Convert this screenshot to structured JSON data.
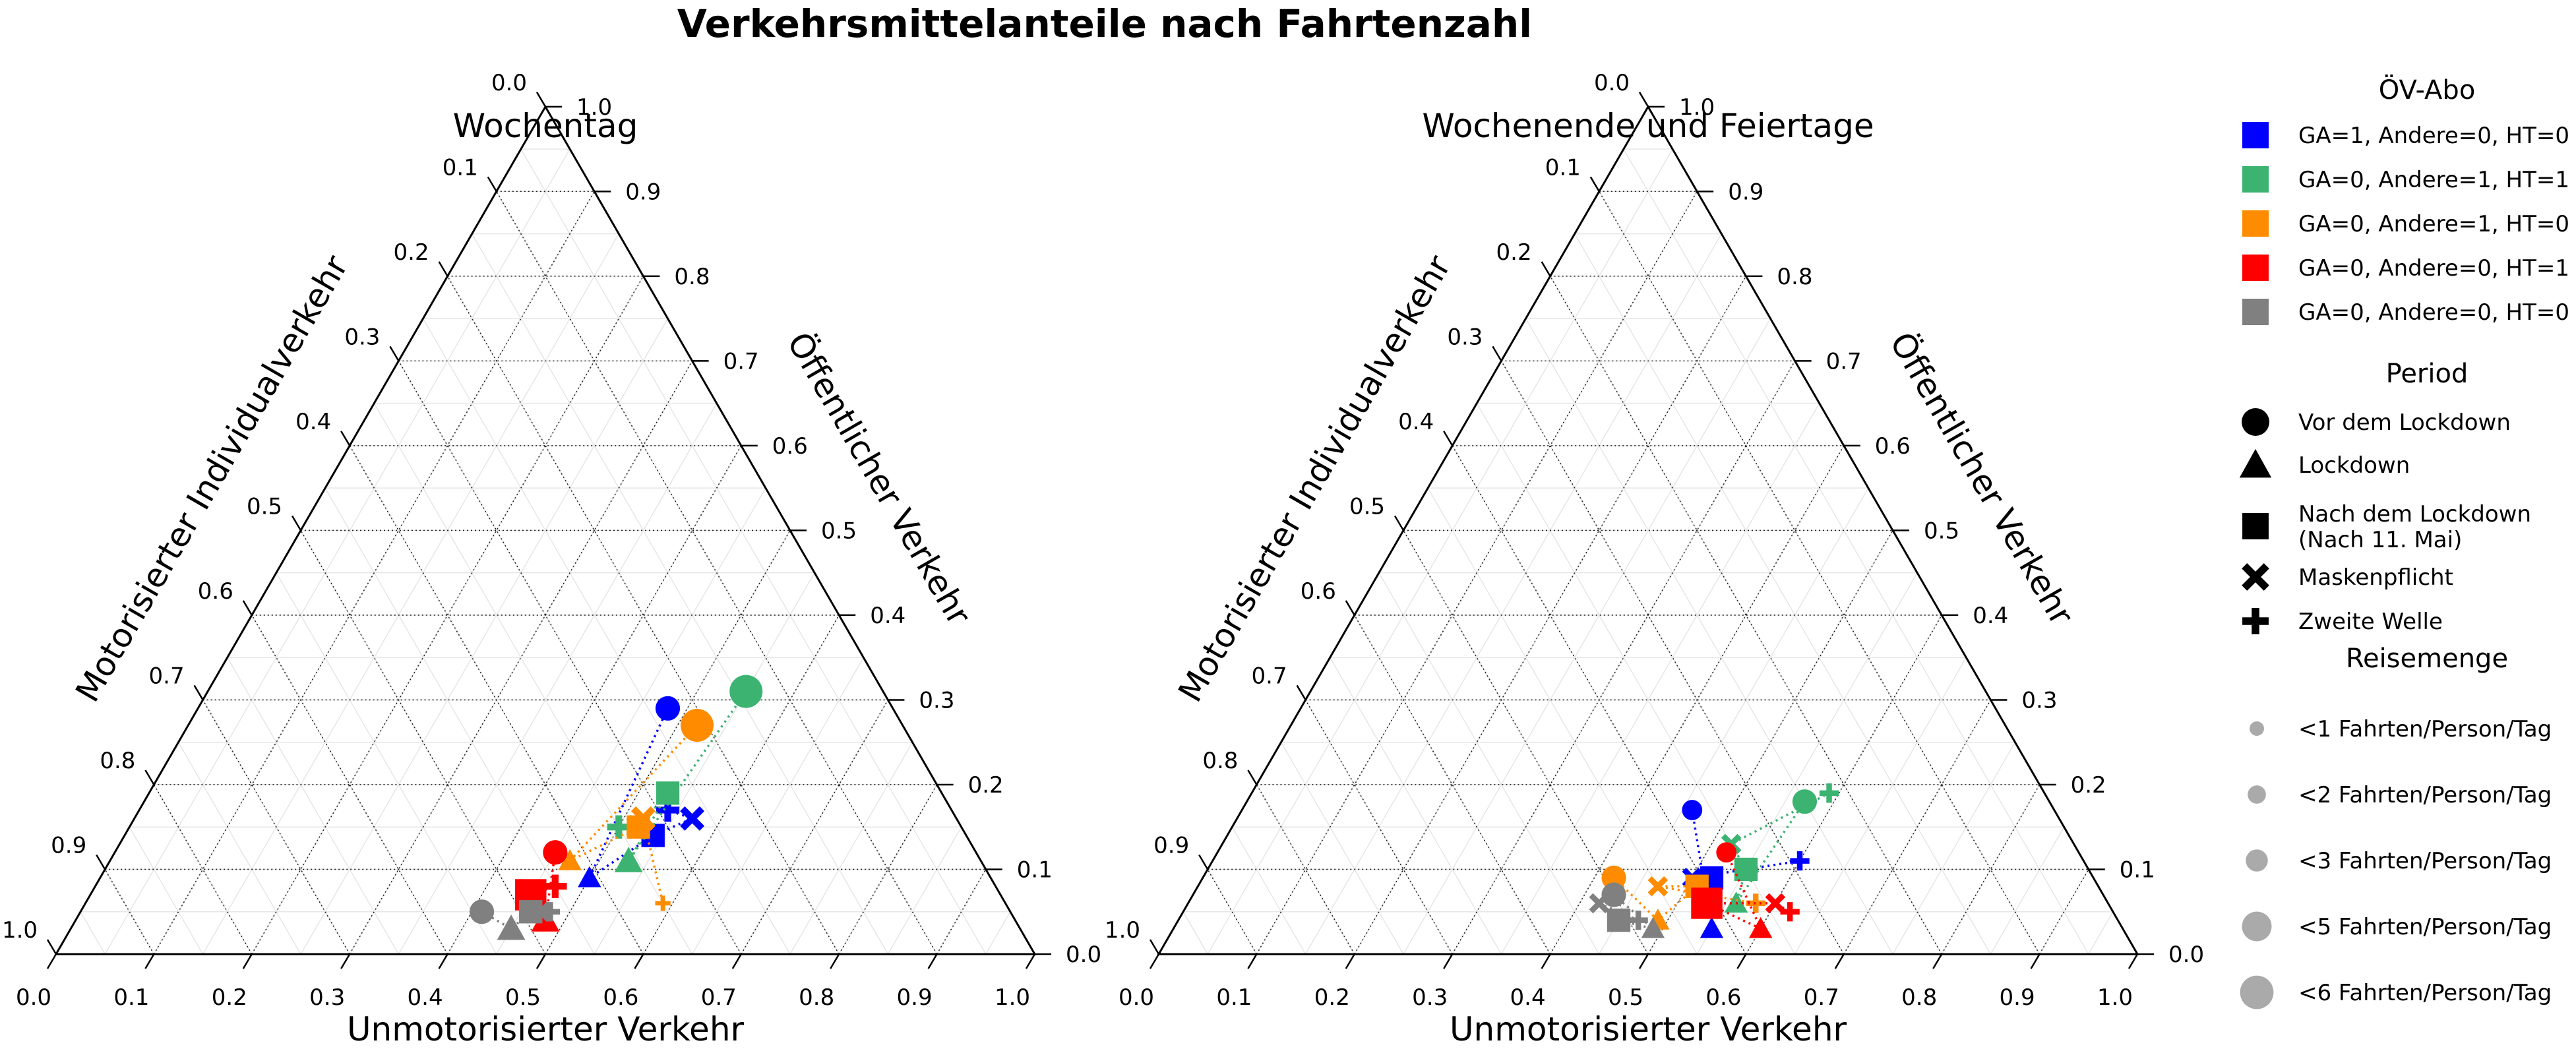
{
  "title": "Verkehrsmittelanteile nach Fahrtenzahl",
  "legend": {
    "abo_title": "ÖV-Abo",
    "abo": [
      {
        "label": "GA=1, Andere=0, HT=0",
        "color": "#0000ff"
      },
      {
        "label": "GA=0, Andere=1, HT=1",
        "color": "#3cb371"
      },
      {
        "label": "GA=0, Andere=1, HT=0",
        "color": "#ff8c00"
      },
      {
        "label": "GA=0, Andere=0, HT=1",
        "color": "#ff0000"
      },
      {
        "label": "GA=0, Andere=0, HT=0",
        "color": "#808080"
      }
    ],
    "period_title": "Period",
    "periods": [
      {
        "label": "Vor dem Lockdown",
        "marker": "circle"
      },
      {
        "label": "Lockdown",
        "marker": "triangle"
      },
      {
        "label": "Nach dem Lockdown\n(Nach 11. Mai)",
        "marker": "square"
      },
      {
        "label": "Maskenpflicht",
        "marker": "x"
      },
      {
        "label": "Zweite Welle",
        "marker": "plus"
      }
    ],
    "size_title": "Reisemenge",
    "sizes": [
      {
        "label": "<1 Fahrten/Person/Tag",
        "trips": 1
      },
      {
        "label": "<2 Fahrten/Person/Tag",
        "trips": 2
      },
      {
        "label": "<3 Fahrten/Person/Tag",
        "trips": 3
      },
      {
        "label": "<5 Fahrten/Person/Tag",
        "trips": 5
      },
      {
        "label": "<6 Fahrten/Person/Tag",
        "trips": 6
      }
    ]
  },
  "chart_data": [
    {
      "type": "scatter",
      "subtype": "ternary",
      "title": "Wochentag",
      "axes": {
        "bottom": "Unmotorisierter Verkehr",
        "right": "Öffentlicher Verkehr",
        "left": "Motorisierter Individualverkehr"
      },
      "ticks": [
        "0.0",
        "0.1",
        "0.2",
        "0.3",
        "0.4",
        "0.5",
        "0.6",
        "0.7",
        "0.8",
        "0.9",
        "1.0"
      ],
      "series": [
        {
          "abo": 0,
          "points": [
            {
              "period": "circle",
              "unmot": 0.48,
              "oev": 0.29,
              "trips": 3
            },
            {
              "period": "triangle",
              "unmot": 0.5,
              "oev": 0.09,
              "trips": 2
            },
            {
              "period": "square",
              "unmot": 0.54,
              "oev": 0.14,
              "trips": 3
            },
            {
              "period": "x",
              "unmot": 0.57,
              "oev": 0.16,
              "trips": 3
            },
            {
              "period": "plus",
              "unmot": 0.54,
              "oev": 0.17,
              "trips": 3
            }
          ]
        },
        {
          "abo": 1,
          "points": [
            {
              "period": "circle",
              "unmot": 0.55,
              "oev": 0.31,
              "trips": 5
            },
            {
              "period": "triangle",
              "unmot": 0.53,
              "oev": 0.11,
              "trips": 3
            },
            {
              "period": "square",
              "unmot": 0.53,
              "oev": 0.19,
              "trips": 3
            },
            {
              "period": "x",
              "unmot": 0.52,
              "oev": 0.15,
              "trips": 3
            },
            {
              "period": "plus",
              "unmot": 0.5,
              "oev": 0.15,
              "trips": 3
            }
          ]
        },
        {
          "abo": 2,
          "points": [
            {
              "period": "circle",
              "unmot": 0.52,
              "oev": 0.27,
              "trips": 5
            },
            {
              "period": "triangle",
              "unmot": 0.47,
              "oev": 0.11,
              "trips": 2
            },
            {
              "period": "square",
              "unmot": 0.52,
              "oev": 0.15,
              "trips": 3
            },
            {
              "period": "x",
              "unmot": 0.52,
              "oev": 0.16,
              "trips": 3
            },
            {
              "period": "plus",
              "unmot": 0.59,
              "oev": 0.06,
              "trips": 1
            }
          ]
        },
        {
          "abo": 3,
          "points": [
            {
              "period": "circle",
              "unmot": 0.45,
              "oev": 0.12,
              "trips": 3
            },
            {
              "period": "triangle",
              "unmot": 0.48,
              "oev": 0.04,
              "trips": 3
            },
            {
              "period": "square",
              "unmot": 0.45,
              "oev": 0.07,
              "trips": 5
            },
            {
              "period": "x",
              "unmot": 0.45,
              "oev": 0.07,
              "trips": 3
            },
            {
              "period": "plus",
              "unmot": 0.47,
              "oev": 0.08,
              "trips": 3
            }
          ]
        },
        {
          "abo": 4,
          "points": [
            {
              "period": "circle",
              "unmot": 0.41,
              "oev": 0.05,
              "trips": 3
            },
            {
              "period": "triangle",
              "unmot": 0.45,
              "oev": 0.03,
              "trips": 3
            },
            {
              "period": "square",
              "unmot": 0.46,
              "oev": 0.05,
              "trips": 3
            },
            {
              "period": "x",
              "unmot": 0.47,
              "oev": 0.05,
              "trips": 2
            },
            {
              "period": "plus",
              "unmot": 0.48,
              "oev": 0.05,
              "trips": 2
            }
          ]
        }
      ]
    },
    {
      "type": "scatter",
      "subtype": "ternary",
      "title": "Wochenende und Feiertage",
      "axes": {
        "bottom": "Unmotorisierter Verkehr",
        "right": "Öffentlicher Verkehr",
        "left": "Motorisierter Individualverkehr"
      },
      "ticks": [
        "0.0",
        "0.1",
        "0.2",
        "0.3",
        "0.4",
        "0.5",
        "0.6",
        "0.7",
        "0.8",
        "0.9",
        "1.0"
      ],
      "series": [
        {
          "abo": 0,
          "points": [
            {
              "period": "circle",
              "unmot": 0.46,
              "oev": 0.17,
              "trips": 2
            },
            {
              "period": "triangle",
              "unmot": 0.55,
              "oev": 0.03,
              "trips": 2
            },
            {
              "period": "square",
              "unmot": 0.52,
              "oev": 0.09,
              "trips": 3
            },
            {
              "period": "x",
              "unmot": 0.5,
              "oev": 0.09,
              "trips": 2
            },
            {
              "period": "plus",
              "unmot": 0.6,
              "oev": 0.11,
              "trips": 2
            }
          ]
        },
        {
          "abo": 1,
          "points": [
            {
              "period": "circle",
              "unmot": 0.57,
              "oev": 0.18,
              "trips": 3
            },
            {
              "period": "triangle",
              "unmot": 0.56,
              "oev": 0.06,
              "trips": 2
            },
            {
              "period": "square",
              "unmot": 0.55,
              "oev": 0.1,
              "trips": 3
            },
            {
              "period": "x",
              "unmot": 0.52,
              "oev": 0.13,
              "trips": 2
            },
            {
              "period": "plus",
              "unmot": 0.59,
              "oev": 0.19,
              "trips": 2
            }
          ]
        },
        {
          "abo": 2,
          "points": [
            {
              "period": "circle",
              "unmot": 0.42,
              "oev": 0.09,
              "trips": 3
            },
            {
              "period": "triangle",
              "unmot": 0.49,
              "oev": 0.04,
              "trips": 2
            },
            {
              "period": "square",
              "unmot": 0.51,
              "oev": 0.08,
              "trips": 3
            },
            {
              "period": "x",
              "unmot": 0.47,
              "oev": 0.08,
              "trips": 2
            },
            {
              "period": "plus",
              "unmot": 0.58,
              "oev": 0.06,
              "trips": 2
            }
          ]
        },
        {
          "abo": 3,
          "points": [
            {
              "period": "circle",
              "unmot": 0.52,
              "oev": 0.12,
              "trips": 2
            },
            {
              "period": "triangle",
              "unmot": 0.6,
              "oev": 0.03,
              "trips": 2
            },
            {
              "period": "square",
              "unmot": 0.53,
              "oev": 0.06,
              "trips": 5
            },
            {
              "period": "x",
              "unmot": 0.6,
              "oev": 0.06,
              "trips": 2
            },
            {
              "period": "plus",
              "unmot": 0.62,
              "oev": 0.05,
              "trips": 2
            }
          ]
        },
        {
          "abo": 4,
          "points": [
            {
              "period": "circle",
              "unmot": 0.43,
              "oev": 0.07,
              "trips": 3
            },
            {
              "period": "triangle",
              "unmot": 0.49,
              "oev": 0.03,
              "trips": 2
            },
            {
              "period": "square",
              "unmot": 0.45,
              "oev": 0.04,
              "trips": 3
            },
            {
              "period": "x",
              "unmot": 0.42,
              "oev": 0.06,
              "trips": 2
            },
            {
              "period": "plus",
              "unmot": 0.47,
              "oev": 0.04,
              "trips": 2
            }
          ]
        }
      ]
    }
  ]
}
